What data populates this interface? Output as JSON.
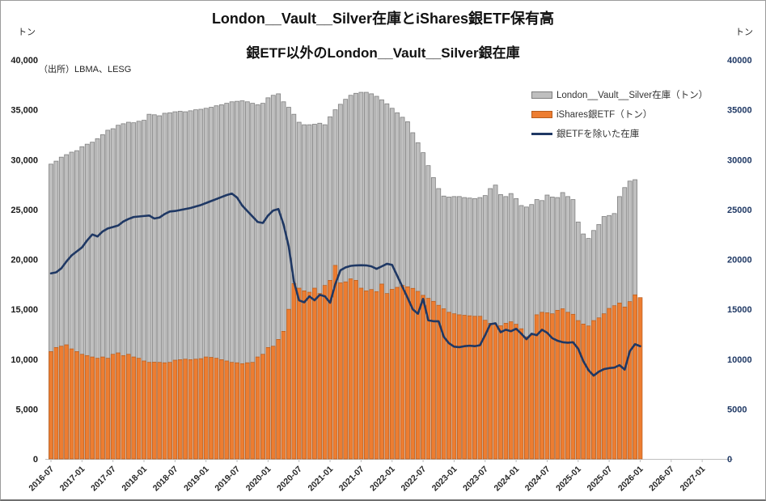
{
  "header": {
    "title": "London__Vault__Silver在庫とiShares銀ETF保有高",
    "subtitle": "銀ETF以外のLondon__Vault__Silver銀在庫",
    "source": "（出所）LBMA、LESG",
    "unit_left": "トン",
    "unit_right": "トン"
  },
  "legend": [
    {
      "label": "London__Vault__Silver在庫（トン）",
      "swatch": "bar-gray"
    },
    {
      "label": "iShares銀ETF（トン）",
      "swatch": "bar-orange"
    },
    {
      "label": "銀ETFを除いた在庫",
      "swatch": "line-navy"
    }
  ],
  "colors": {
    "bar_gray_fill": "#bfbfbf",
    "bar_gray_border": "#7f7f7f",
    "bar_orange_fill": "#ed7d31",
    "bar_orange_border": "#b65c1d",
    "line_navy": "#1f3864",
    "axis_line": "#bfbfbf",
    "left_tick_text": "#1a1a1a",
    "right_tick_text": "#1f3864",
    "x_tick_text": "#262626"
  },
  "chart_data": {
    "type": "bar+line combo, dual ton axes (left bars, right line), monthly",
    "ylim": [
      0,
      40000
    ],
    "grid": "off",
    "legend_position": "upper right inside plot",
    "left_ticks": [
      "0",
      "5,000",
      "10,000",
      "15,000",
      "20,000",
      "25,000",
      "30,000",
      "35,000",
      "40,000"
    ],
    "right_ticks": [
      "0",
      "5000",
      "10000",
      "15000",
      "20000",
      "25000",
      "30000",
      "35000",
      "40000"
    ],
    "x_tick_labels": [
      "2016-07",
      "2017-01",
      "2017-07",
      "2018-01",
      "2018-07",
      "2019-01",
      "2019-07",
      "2020-01",
      "2020-07",
      "2021-01",
      "2021-07",
      "2022-01",
      "2022-07",
      "2023-01",
      "2023-07",
      "2024-01",
      "2024-07",
      "2025-01",
      "2025-07",
      "2026-01",
      "2026-07",
      "2027-01"
    ],
    "x": [
      "2016-07",
      "2016-08",
      "2016-09",
      "2016-10",
      "2016-11",
      "2016-12",
      "2017-01",
      "2017-02",
      "2017-03",
      "2017-04",
      "2017-05",
      "2017-06",
      "2017-07",
      "2017-08",
      "2017-09",
      "2017-10",
      "2017-11",
      "2017-12",
      "2018-01",
      "2018-02",
      "2018-03",
      "2018-04",
      "2018-05",
      "2018-06",
      "2018-07",
      "2018-08",
      "2018-09",
      "2018-10",
      "2018-11",
      "2018-12",
      "2019-01",
      "2019-02",
      "2019-03",
      "2019-04",
      "2019-05",
      "2019-06",
      "2019-07",
      "2019-08",
      "2019-09",
      "2019-10",
      "2019-11",
      "2019-12",
      "2020-01",
      "2020-02",
      "2020-03",
      "2020-04",
      "2020-05",
      "2020-06",
      "2020-07",
      "2020-08",
      "2020-09",
      "2020-10",
      "2020-11",
      "2020-12",
      "2021-01",
      "2021-02",
      "2021-03",
      "2021-04",
      "2021-05",
      "2021-06",
      "2021-07",
      "2021-08",
      "2021-09",
      "2021-10",
      "2021-11",
      "2021-12",
      "2022-01",
      "2022-02",
      "2022-03",
      "2022-04",
      "2022-05",
      "2022-06",
      "2022-07",
      "2022-08",
      "2022-09",
      "2022-10",
      "2022-11",
      "2022-12",
      "2023-01",
      "2023-02",
      "2023-03",
      "2023-04",
      "2023-05",
      "2023-06",
      "2023-07",
      "2023-08",
      "2023-09",
      "2023-10",
      "2023-11",
      "2023-12",
      "2024-01",
      "2024-02",
      "2024-03",
      "2024-04",
      "2024-05",
      "2024-06",
      "2024-07",
      "2024-08",
      "2024-09",
      "2024-10",
      "2024-11",
      "2024-12",
      "2025-01",
      "2025-02",
      "2025-03",
      "2025-04",
      "2025-05",
      "2025-06",
      "2025-07",
      "2025-08",
      "2025-09",
      "2025-10",
      "2025-11",
      "2025-12",
      "2026-01"
    ],
    "series": [
      {
        "name": "London__Vault__Silver在庫（トン）",
        "type": "bar",
        "values": [
          29550,
          29850,
          30250,
          30500,
          30750,
          30900,
          31300,
          31550,
          31750,
          32100,
          32500,
          32950,
          33100,
          33450,
          33600,
          33750,
          33700,
          33850,
          33950,
          34550,
          34500,
          34400,
          34650,
          34700,
          34800,
          34850,
          34800,
          34900,
          35000,
          35050,
          35150,
          35250,
          35400,
          35500,
          35650,
          35800,
          35850,
          35900,
          35800,
          35650,
          35500,
          35650,
          36200,
          36450,
          36600,
          35800,
          35250,
          34550,
          33750,
          33500,
          33500,
          33550,
          33650,
          33500,
          34300,
          35000,
          35550,
          36050,
          36450,
          36650,
          36750,
          36750,
          36600,
          36350,
          36000,
          35600,
          35150,
          34700,
          34250,
          33800,
          32700,
          31700,
          30700,
          29400,
          28200,
          27100,
          26350,
          26250,
          26300,
          26300,
          26200,
          26150,
          26100,
          26200,
          26400,
          27100,
          27450,
          26500,
          26300,
          26600,
          26100,
          25400,
          25250,
          25500,
          26000,
          25900,
          26450,
          26250,
          26200,
          26700,
          26300,
          26000,
          23750,
          22550,
          22100,
          22900,
          23500,
          24300,
          24400,
          24600,
          26300,
          27200,
          27850,
          27990,
          null
        ]
      },
      {
        "name": "iShares銀ETF（トン）",
        "type": "bar",
        "values": [
          10760,
          11170,
          11300,
          11440,
          11030,
          10760,
          10490,
          10360,
          10220,
          10090,
          10220,
          10090,
          10490,
          10630,
          10360,
          10490,
          10220,
          10090,
          9820,
          9680,
          9700,
          9680,
          9640,
          9680,
          9900,
          9950,
          10000,
          9950,
          10000,
          10050,
          10220,
          10180,
          10090,
          9950,
          9820,
          9680,
          9640,
          9550,
          9640,
          9680,
          10220,
          10490,
          11170,
          11300,
          11980,
          12790,
          15000,
          17580,
          17120,
          16850,
          16710,
          17120,
          16580,
          17390,
          17900,
          19400,
          17650,
          17750,
          18050,
          17900,
          17120,
          16850,
          16980,
          16770,
          17530,
          16580,
          17000,
          17200,
          17400,
          17250,
          17100,
          16800,
          16400,
          16100,
          15800,
          15400,
          15050,
          14700,
          14550,
          14450,
          14400,
          14350,
          14300,
          14300,
          13900,
          13600,
          13500,
          13350,
          13600,
          13750,
          13500,
          13050,
          12250,
          12400,
          14450,
          14700,
          14650,
          14550,
          14900,
          15050,
          14700,
          14500,
          13870,
          13520,
          13330,
          13870,
          14140,
          14550,
          15090,
          15360,
          15630,
          15230,
          15770,
          16450,
          16170
        ]
      },
      {
        "name": "銀ETFを除いた在庫",
        "type": "line",
        "values": [
          18600,
          18700,
          19100,
          19800,
          20400,
          20800,
          21200,
          21900,
          22500,
          22300,
          22800,
          23100,
          23250,
          23400,
          23800,
          24050,
          24250,
          24300,
          24350,
          24400,
          24100,
          24200,
          24550,
          24800,
          24850,
          24950,
          25050,
          25150,
          25300,
          25450,
          25650,
          25850,
          26050,
          26250,
          26450,
          26600,
          26200,
          25400,
          24850,
          24300,
          23750,
          23650,
          24400,
          24900,
          25050,
          23500,
          21300,
          17800,
          15900,
          15700,
          16300,
          15900,
          16450,
          16300,
          15650,
          17500,
          18900,
          19200,
          19350,
          19400,
          19420,
          19400,
          19300,
          19050,
          19300,
          19560,
          19450,
          18350,
          17250,
          16150,
          15000,
          14550,
          16050,
          13900,
          13800,
          13800,
          12250,
          11600,
          11250,
          11200,
          11300,
          11350,
          11300,
          11400,
          12400,
          13500,
          13600,
          12700,
          12950,
          12800,
          13050,
          12550,
          12000,
          12550,
          12400,
          12950,
          12650,
          12100,
          11850,
          11700,
          11650,
          11700,
          11050,
          9800,
          8900,
          8350,
          8750,
          9000,
          9100,
          9150,
          9400,
          8950,
          10800,
          11500,
          11300
        ]
      }
    ]
  }
}
